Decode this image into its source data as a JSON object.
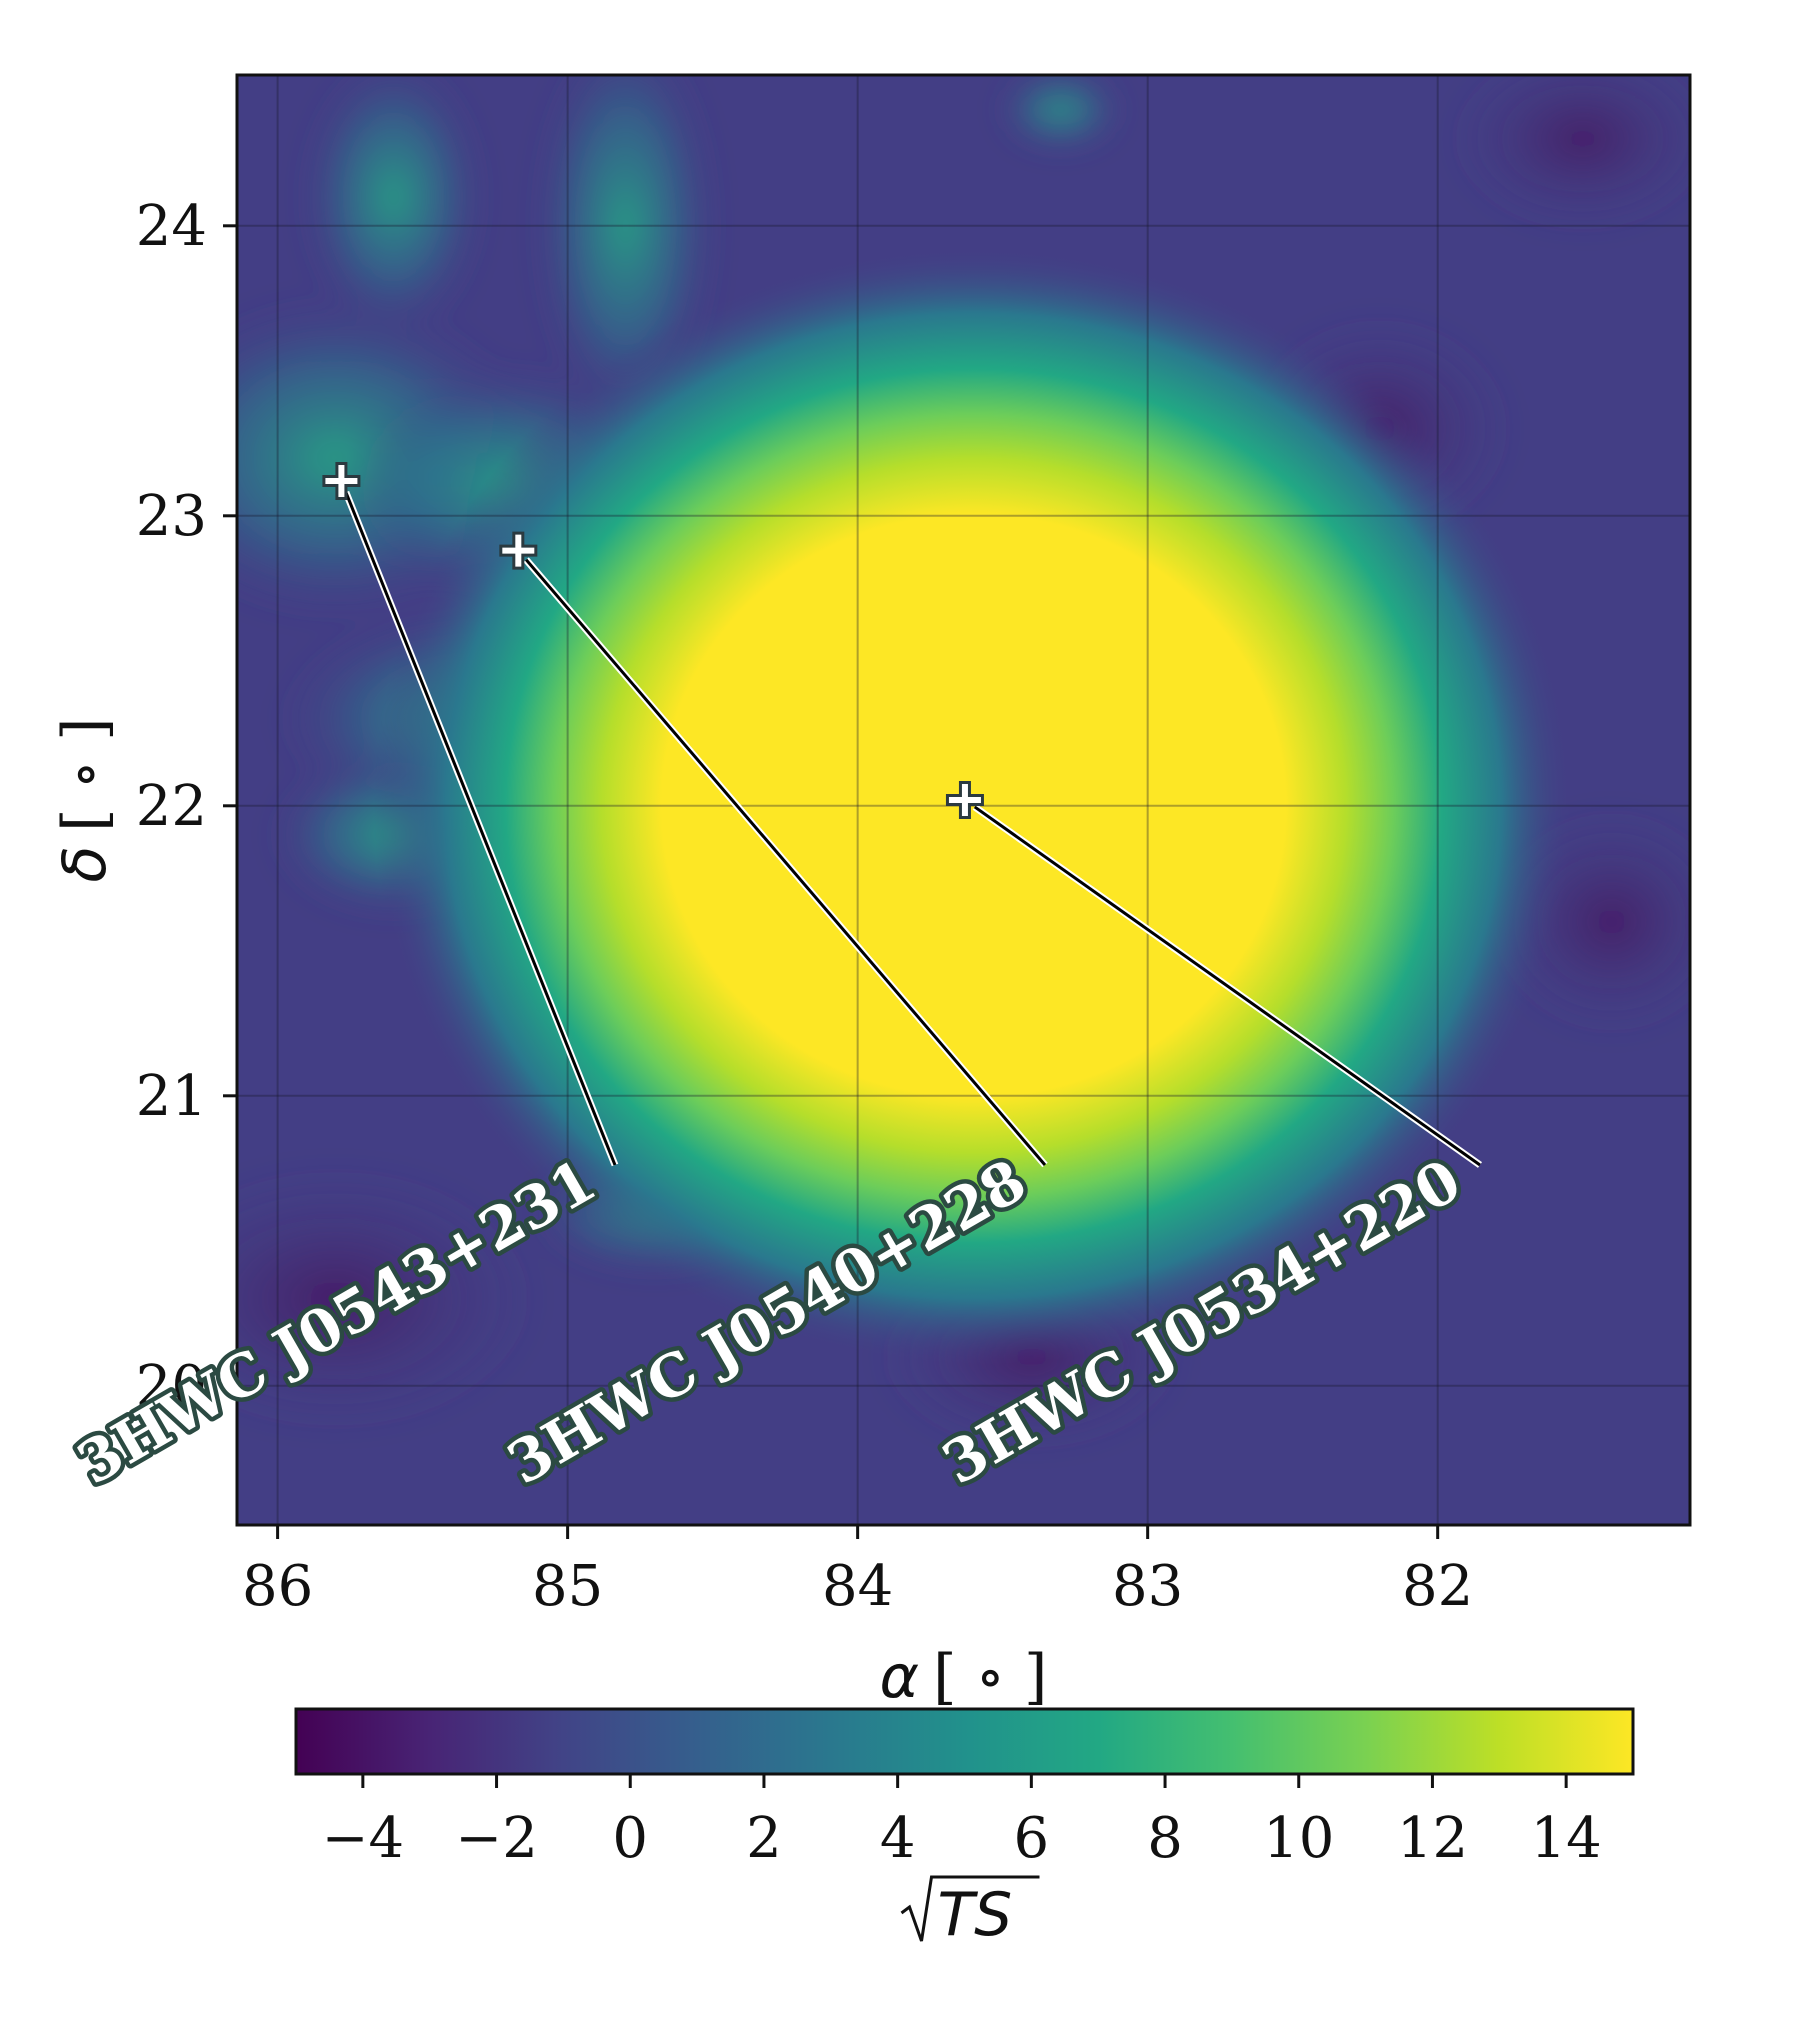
{
  "chart_data": {
    "type": "heatmap",
    "description_units": "degrees",
    "xlabel_symbol": "α",
    "ylabel_symbol": "δ",
    "xlabel_unit": "[ ∘ ]",
    "ylabel_unit": "[ ∘ ]",
    "xlim": [
      86.14,
      81.13
    ],
    "ylim": [
      19.52,
      24.52
    ],
    "x_ticks": [
      86,
      85,
      84,
      83,
      82
    ],
    "y_ticks": [
      20,
      21,
      22,
      23,
      24
    ],
    "grid": true,
    "colormap": "viridis",
    "colorbar": {
      "label": "√TS",
      "label_radicand": "TS",
      "range": [
        -5,
        15
      ],
      "ticks": [
        -4,
        -2,
        0,
        2,
        4,
        6,
        8,
        10,
        12,
        14
      ],
      "tick_labels": [
        "−4",
        "−2",
        "0",
        "2",
        "4",
        "6",
        "8",
        "10",
        "12",
        "14"
      ],
      "orientation": "horizontal"
    },
    "peak_region": {
      "ra": 83.6,
      "dec": 22.0,
      "sqrt_ts": 15
    },
    "sources": [
      {
        "name": "3HWC J0543+231",
        "ra": 85.78,
        "dec": 23.12
      },
      {
        "name": "3HWC J0540+228",
        "ra": 85.17,
        "dec": 22.88
      },
      {
        "name": "3HWC J0534+220",
        "ra": 83.63,
        "dec": 22.02
      }
    ]
  },
  "colors": {
    "background_field": "#433e85",
    "peak": "#fde725",
    "label_outline": "#2b4a42",
    "grid": "#1a1a2e"
  }
}
